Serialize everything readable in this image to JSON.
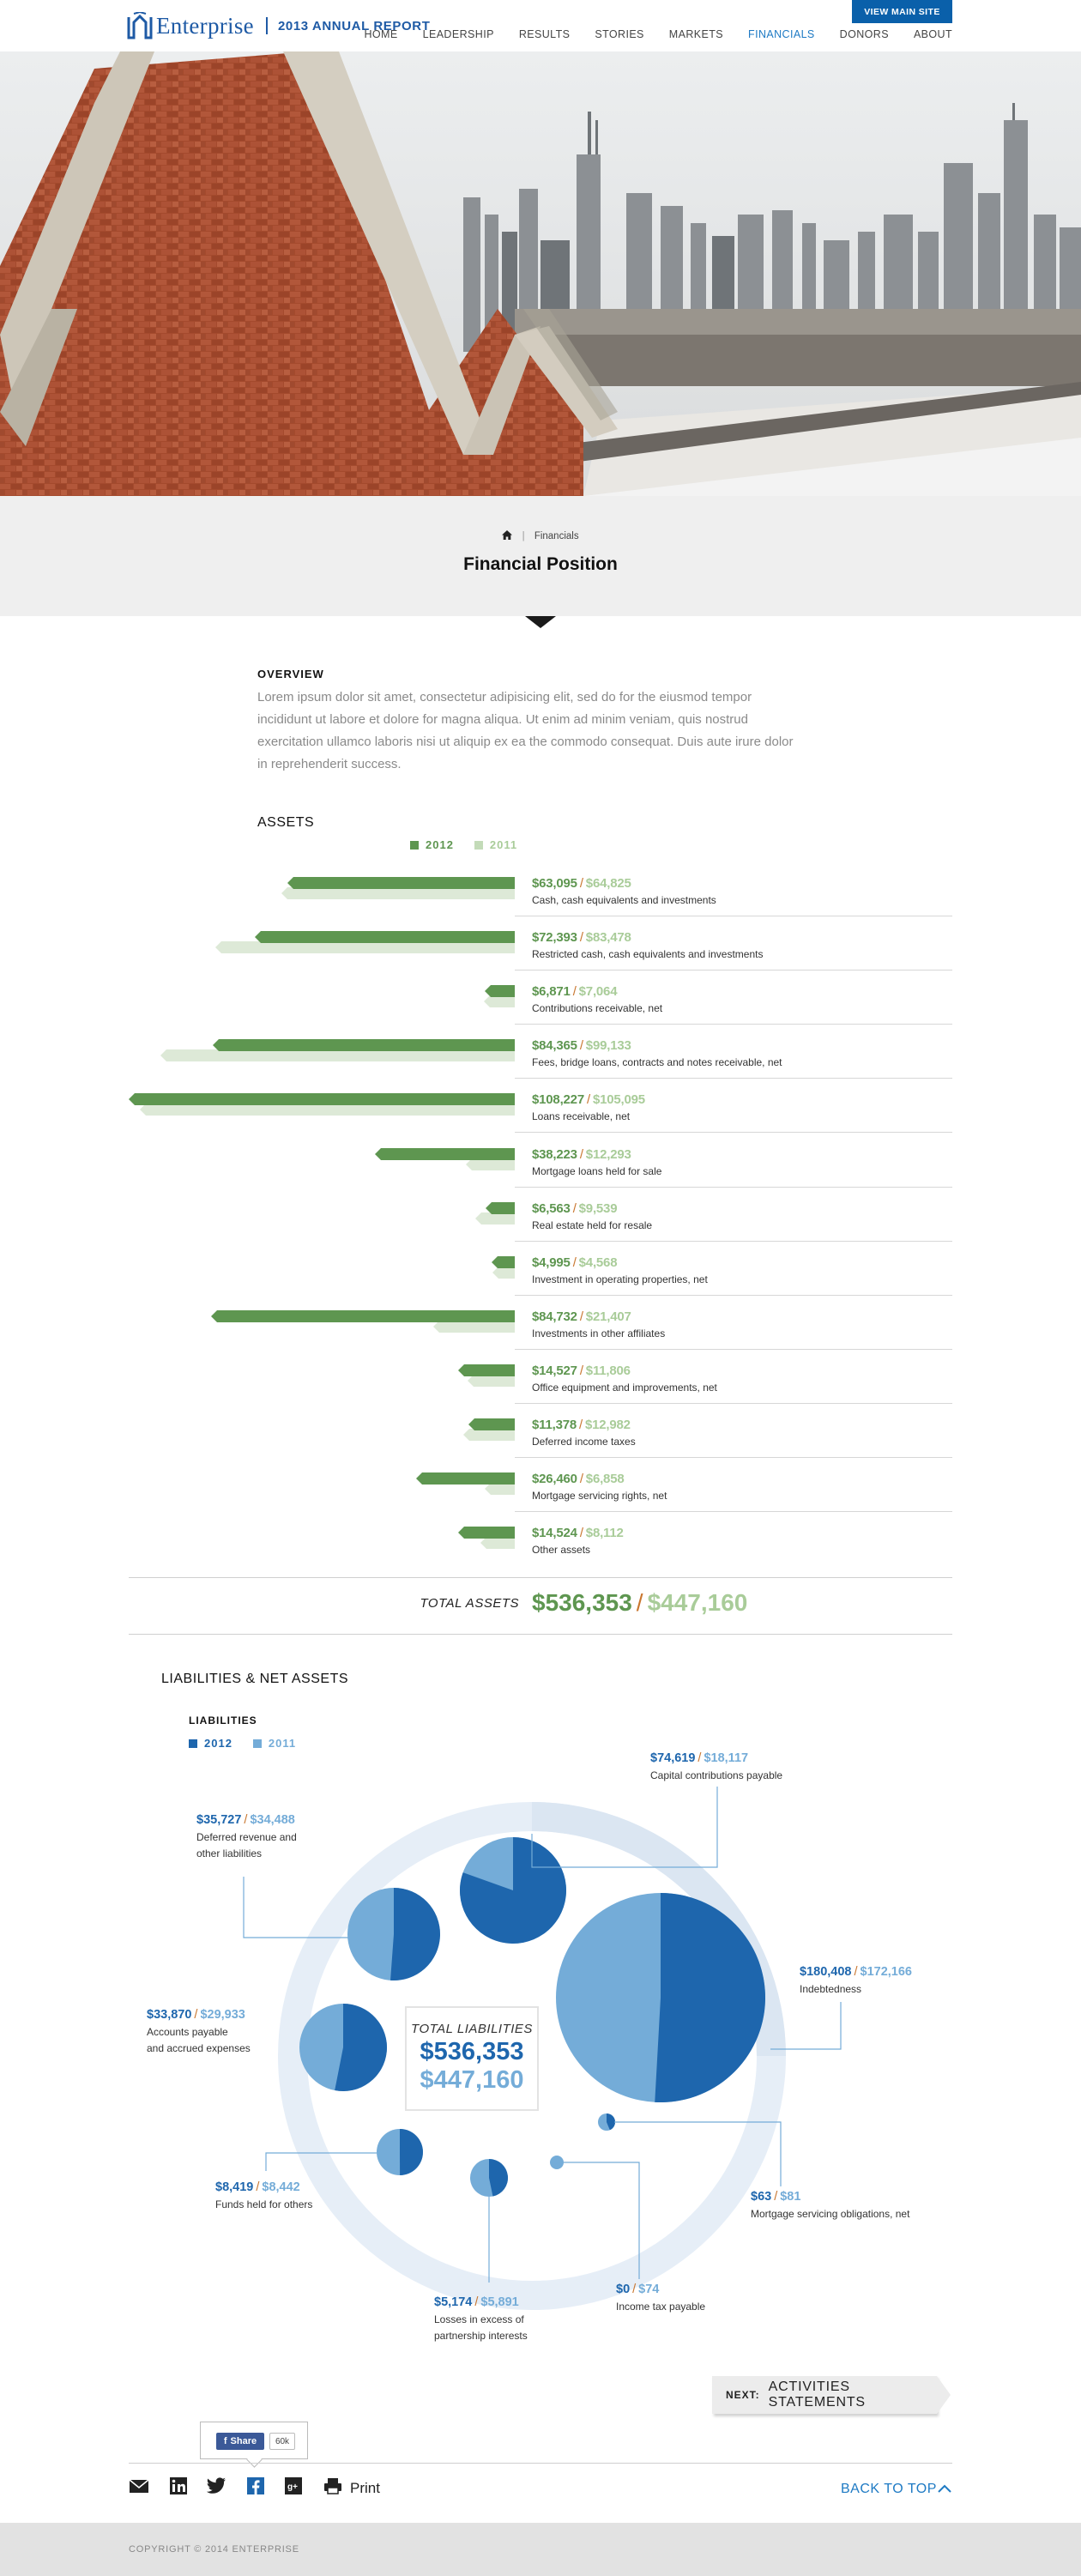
{
  "header": {
    "brand": "Enterprise",
    "report": "2013 ANNUAL REPORT",
    "view_main_site": "VIEW MAIN SITE",
    "nav": [
      "HOME",
      "LEADERSHIP",
      "RESULTS",
      "STORIES",
      "MARKETS",
      "FINANCIALS",
      "DONORS",
      "ABOUT"
    ],
    "active_nav": "FINANCIALS"
  },
  "breadcrumb": {
    "section": "Financials"
  },
  "page_title": "Financial Position",
  "overview": {
    "heading": "OVERVIEW",
    "text": "Lorem ipsum dolor sit amet, consectetur adipisicing elit, sed do for the  eiusmod tempor incididunt ut labore et dolore for magna aliqua. Ut enim ad minim veniam, quis nostrud exercitation ullamco laboris nisi ut aliquip ex ea the commodo consequat. Duis aute irure dolor in reprehenderit success."
  },
  "assets": {
    "heading": "ASSETS",
    "legend": [
      "2012",
      "2011"
    ],
    "total_label": "TOTAL ASSETS",
    "total_2012": "$536,353",
    "total_2011": "$447,160"
  },
  "chart_data": [
    {
      "type": "bar",
      "orientation": "horizontal",
      "title": "ASSETS",
      "series": [
        {
          "name": "2012"
        },
        {
          "name": "2011"
        }
      ],
      "categories": [
        "Cash, cash equivalents and investments",
        "Restricted cash, cash equivalents and investments",
        "Contributions receivable, net",
        "Fees, bridge loans, contracts and notes receivable, net",
        "Loans receivable, net",
        "Mortgage loans held for sale",
        "Real estate held for resale",
        "Investment in operating properties, net",
        "Investments in other affiliates",
        "Office equipment and improvements, net",
        "Deferred income taxes",
        "Mortgage servicing rights, net",
        "Other assets"
      ],
      "values_2012": [
        63095,
        72393,
        6871,
        84365,
        108227,
        38223,
        6563,
        4995,
        84732,
        14527,
        11378,
        26460,
        14524
      ],
      "values_2011": [
        64825,
        83478,
        7064,
        99133,
        105095,
        12293,
        9539,
        4568,
        21407,
        11806,
        12982,
        6858,
        8112
      ],
      "labels_2012": [
        "$63,095",
        "$72,393",
        "$6,871",
        "$84,365",
        "$108,227",
        "$38,223",
        "$6,563",
        "$4,995",
        "$84,732",
        "$14,527",
        "$11,378",
        "$26,460",
        "$14,524"
      ],
      "labels_2011": [
        "$64,825",
        "$83,478",
        "$7,064",
        "$99,133",
        "$105,095",
        "$12,293",
        "$9,539",
        "$4,568",
        "$21,407",
        "$11,806",
        "$12,982",
        "$6,858",
        "$8,112"
      ],
      "colors": {
        "2012": "#5e9650",
        "2011": "#dde9d7"
      }
    },
    {
      "type": "pie",
      "title": "LIABILITIES",
      "series": [
        {
          "name": "2012"
        },
        {
          "name": "2011"
        }
      ],
      "categories": [
        "Capital contributions payable",
        "Indebtedness",
        "Deferred revenue and other liabilities",
        "Accounts payable and accrued expenses",
        "Funds held for others",
        "Losses in excess of partnership interests",
        "Income tax payable",
        "Mortgage servicing obligations, net"
      ],
      "values_2012": [
        74619,
        180408,
        35727,
        33870,
        8419,
        5174,
        0,
        63
      ],
      "values_2011": [
        18117,
        172166,
        34488,
        29933,
        8442,
        5891,
        74,
        81
      ],
      "colors": {
        "2012": "#1e66ad",
        "2011": "#74acd8"
      }
    }
  ],
  "asset_rows": [
    {
      "v12": "$63,095",
      "v11": "$64,825",
      "label": "Cash, cash equivalents and investments"
    },
    {
      "v12": "$72,393",
      "v11": "$83,478",
      "label": "Restricted cash, cash equivalents and investments"
    },
    {
      "v12": "$6,871",
      "v11": "$7,064",
      "label": "Contributions receivable, net"
    },
    {
      "v12": "$84,365",
      "v11": "$99,133",
      "label": "Fees, bridge loans, contracts and notes receivable, net"
    },
    {
      "v12": "$108,227",
      "v11": "$105,095",
      "label": "Loans receivable, net"
    },
    {
      "v12": "$38,223",
      "v11": "$12,293",
      "label": "Mortgage loans held for sale"
    },
    {
      "v12": "$6,563",
      "v11": "$9,539",
      "label": "Real estate held for resale"
    },
    {
      "v12": "$4,995",
      "v11": "$4,568",
      "label": "Investment in operating properties, net"
    },
    {
      "v12": "$84,732",
      "v11": "$21,407",
      "label": "Investments in other affiliates"
    },
    {
      "v12": "$14,527",
      "v11": "$11,806",
      "label": "Office equipment and improvements, net"
    },
    {
      "v12": "$11,378",
      "v11": "$12,982",
      "label": "Deferred income taxes"
    },
    {
      "v12": "$26,460",
      "v11": "$6,858",
      "label": "Mortgage servicing rights, net"
    },
    {
      "v12": "$14,524",
      "v11": "$8,112",
      "label": "Other assets"
    }
  ],
  "liabilities": {
    "heading": "LIABILITIES & NET ASSETS",
    "subheading": "LIABILITIES",
    "legend": [
      "2012",
      "2011"
    ],
    "total_label": "TOTAL LIABILITIES",
    "total_2012": "$536,353",
    "total_2011": "$447,160",
    "callouts": [
      {
        "v12": "$74,619",
        "v11": "$18,117",
        "label": "Capital contributions payable"
      },
      {
        "v12": "$35,727",
        "v11": "$34,488",
        "label": "Deferred revenue and\nother liabilities"
      },
      {
        "v12": "$180,408",
        "v11": "$172,166",
        "label": "Indebtedness"
      },
      {
        "v12": "$33,870",
        "v11": "$29,933",
        "label": "Accounts payable\nand accrued expenses"
      },
      {
        "v12": "$8,419",
        "v11": "$8,442",
        "label": "Funds held for others"
      },
      {
        "v12": "$63",
        "v11": "$81",
        "label": "Mortgage servicing obligations, net"
      },
      {
        "v12": "$5,174",
        "v11": "$5,891",
        "label": "Losses in excess of\npartnership interests"
      },
      {
        "v12": "$0",
        "v11": "$74",
        "label": "Income tax payable"
      }
    ]
  },
  "next": {
    "prefix": "NEXT:",
    "title": "ACTIVITIES STATEMENTS"
  },
  "share": {
    "fb_label": "Share",
    "fb_count": "60k",
    "print": "Print",
    "back_to_top": "BACK TO TOP"
  },
  "footer": {
    "copyright": "COPYRIGHT © 2014 ENTERPRISE"
  }
}
